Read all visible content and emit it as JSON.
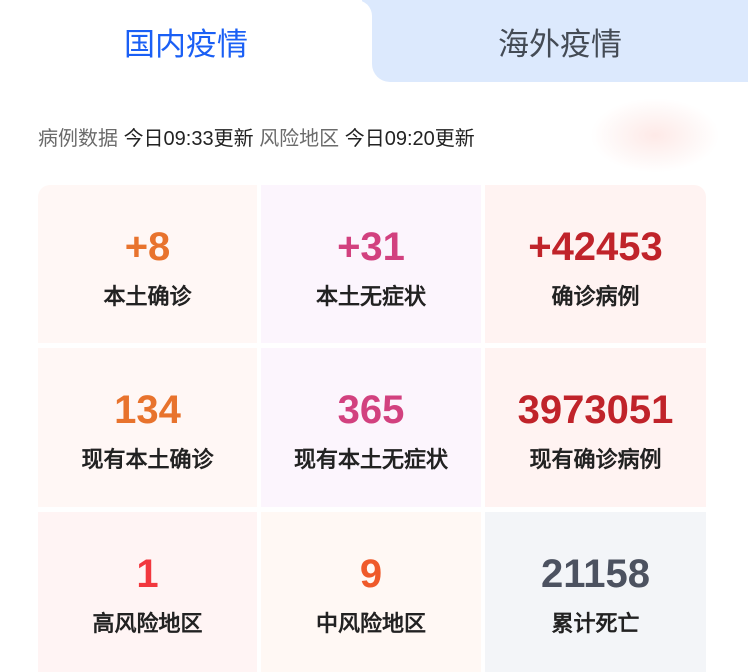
{
  "tabs": [
    {
      "label": "国内疫情",
      "active": true
    },
    {
      "label": "海外疫情",
      "active": false
    }
  ],
  "update": {
    "case_label": "病例数据",
    "case_time": "今日09:33更新",
    "risk_label": "风险地区",
    "risk_time": "今日09:20更新"
  },
  "stats": [
    {
      "value": "+8",
      "label": "本土确诊",
      "color": "#e8732d",
      "bg": "#fff7f5"
    },
    {
      "value": "+31",
      "label": "本土无症状",
      "color": "#d2417f",
      "bg": "#fcf5fd"
    },
    {
      "value": "+42453",
      "label": "确诊病例",
      "color": "#c0232a",
      "bg": "#fff3f2"
    },
    {
      "value": "134",
      "label": "现有本土确诊",
      "color": "#e8732d",
      "bg": "#fff7f5"
    },
    {
      "value": "365",
      "label": "现有本土无症状",
      "color": "#d2417f",
      "bg": "#fcf5fd"
    },
    {
      "value": "3973051",
      "label": "现有确诊病例",
      "color": "#c0232a",
      "bg": "#fff3f2"
    },
    {
      "value": "1",
      "label": "高风险地区",
      "color": "#f2373e",
      "bg": "#fff4f4"
    },
    {
      "value": "9",
      "label": "中风险地区",
      "color": "#ef5a2a",
      "bg": "#fff8f4"
    },
    {
      "value": "21158",
      "label": "累计死亡",
      "color": "#4c5260",
      "bg": "#f3f5f8"
    }
  ]
}
